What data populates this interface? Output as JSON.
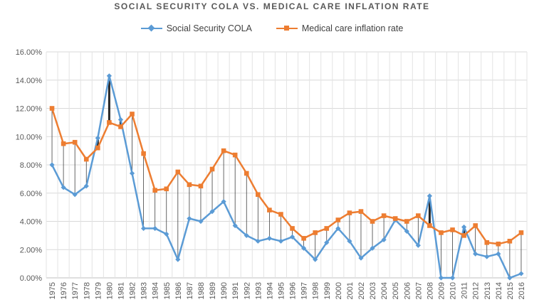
{
  "chart_data": {
    "type": "line",
    "title": "SOCIAL SECURITY COLA VS. MEDICAL CARE INFLATION RATE",
    "xlabel": "",
    "ylabel": "",
    "ylim": [
      0,
      16
    ],
    "ytick_format": "percent-2dp",
    "yticks": [
      "0.00%",
      "2.00%",
      "4.00%",
      "6.00%",
      "8.00%",
      "10.00%",
      "12.00%",
      "14.00%",
      "16.00%"
    ],
    "grid": "horizontal",
    "legend_position": "top",
    "x": [
      "1975",
      "1976",
      "1977",
      "1978",
      "1979",
      "1980",
      "1981",
      "1982",
      "1983",
      "1984",
      "1985",
      "1986",
      "1987",
      "1988",
      "1989",
      "1990",
      "1991",
      "1992",
      "1993",
      "1994",
      "1995",
      "1996",
      "1997",
      "1998",
      "1999",
      "2000",
      "2001",
      "2002",
      "2003",
      "2004",
      "2005",
      "2006",
      "2007",
      "2008",
      "2009",
      "2010",
      "2011",
      "2012",
      "2013",
      "2014",
      "2015",
      "2016"
    ],
    "series": [
      {
        "name": "Social Security COLA",
        "color": "#5b9bd5",
        "marker": "diamond",
        "values": [
          8.0,
          6.4,
          5.9,
          6.5,
          9.9,
          14.3,
          11.2,
          7.4,
          3.5,
          3.5,
          3.1,
          1.3,
          4.2,
          4.0,
          4.7,
          5.4,
          3.7,
          3.0,
          2.6,
          2.8,
          2.6,
          2.9,
          2.1,
          1.3,
          2.5,
          3.5,
          2.6,
          1.4,
          2.1,
          2.7,
          4.1,
          3.3,
          2.3,
          5.8,
          0.0,
          0.0,
          3.6,
          1.7,
          1.5,
          1.7,
          0.0,
          0.3
        ]
      },
      {
        "name": "Medical care inflation rate",
        "color": "#ed7d31",
        "marker": "square",
        "values": [
          12.0,
          9.5,
          9.6,
          8.4,
          9.2,
          11.0,
          10.7,
          11.6,
          8.8,
          6.2,
          6.3,
          7.5,
          6.6,
          6.5,
          7.7,
          9.0,
          8.7,
          7.4,
          5.9,
          4.8,
          4.5,
          3.5,
          2.8,
          3.2,
          3.5,
          4.1,
          4.6,
          4.7,
          4.0,
          4.4,
          4.2,
          4.0,
          4.4,
          3.7,
          3.2,
          3.4,
          3.0,
          3.7,
          2.5,
          2.4,
          2.6,
          3.2
        ]
      }
    ]
  }
}
